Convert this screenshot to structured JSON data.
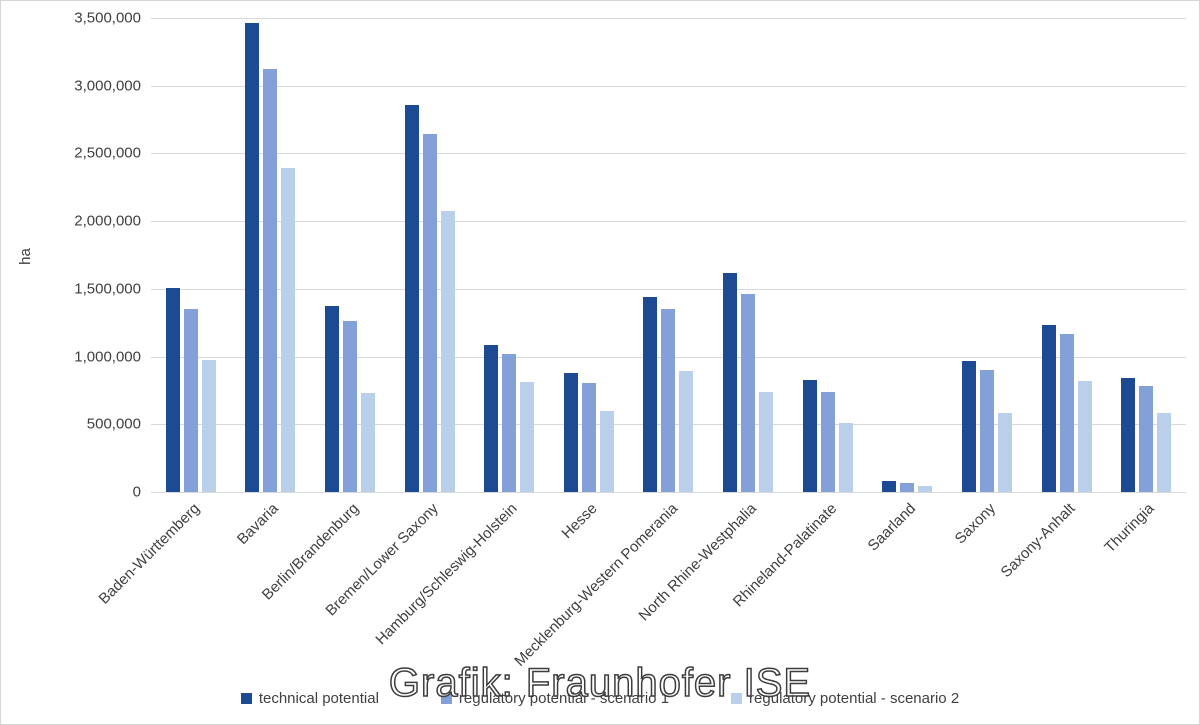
{
  "watermark_text": "Grafik: Fraunhofer ISE",
  "colors": {
    "series": [
      "#1c4b94",
      "#84a0d8",
      "#bacfea"
    ],
    "gridline": "#d9d9d9",
    "axis_text": "#3f3f3f"
  },
  "y_axis": {
    "title": "ha",
    "tick_labels_top_to_bottom": [
      "3,500,000",
      "3,000,000",
      "2,500,000",
      "2,000,000",
      "1,500,000",
      "1,000,000",
      "500,000",
      "0"
    ]
  },
  "chart_data": {
    "type": "bar",
    "title": "",
    "xlabel": "",
    "ylabel": "ha",
    "ylim": [
      0,
      3500000
    ],
    "ytick_step": 500000,
    "grid": true,
    "legend_position": "bottom",
    "categories": [
      "Baden-Württemberg",
      "Bavaria",
      "Berlin/Brandenburg",
      "Bremen/Lower Saxony",
      "Hamburg/Schleswig-Holstein",
      "Hesse",
      "Mecklenburg-Western Pomerania",
      "North Rhine-Westphalia",
      "Rhineland-Palatinate",
      "Saarland",
      "Saxony",
      "Saxony-Anhalt",
      "Thuringia"
    ],
    "series": [
      {
        "name": "technical potential",
        "color": "#1c4b94",
        "values": [
          1510000,
          3460000,
          1375000,
          2855000,
          1085000,
          880000,
          1440000,
          1620000,
          830000,
          80000,
          965000,
          1230000,
          845000
        ]
      },
      {
        "name": "regulatory potential - scenario 1",
        "color": "#84a0d8",
        "values": [
          1350000,
          3120000,
          1265000,
          2640000,
          1020000,
          805000,
          1350000,
          1465000,
          740000,
          65000,
          900000,
          1165000,
          785000
        ]
      },
      {
        "name": "regulatory potential - scenario 2",
        "color": "#bacfea",
        "values": [
          975000,
          2395000,
          730000,
          2075000,
          815000,
          595000,
          895000,
          740000,
          510000,
          45000,
          580000,
          820000,
          580000
        ]
      }
    ]
  }
}
